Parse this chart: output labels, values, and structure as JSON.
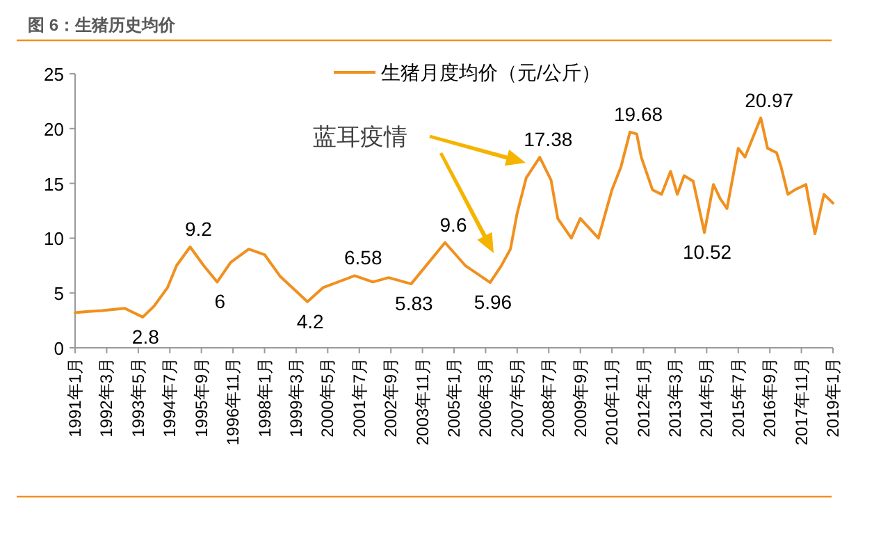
{
  "chart_data": {
    "type": "line",
    "title": "图 6：生猪历史均价",
    "x": [
      "1991-01",
      "1991-06",
      "1992-01",
      "1992-11",
      "1993-07",
      "1993-12",
      "1994-06",
      "1994-10",
      "1995-04",
      "1995-10",
      "1996-04",
      "1996-10",
      "1997-06",
      "1998-01",
      "1998-08",
      "1999-08",
      "2000-03",
      "2001-05",
      "2002-01",
      "2002-08",
      "2003-06",
      "2004-09",
      "2005-06",
      "2006-05",
      "2006-10",
      "2007-02",
      "2007-05",
      "2007-09",
      "2008-03",
      "2008-08",
      "2008-11",
      "2009-05",
      "2009-09",
      "2010-05",
      "2010-11",
      "2011-03",
      "2011-07",
      "2011-10",
      "2011-12",
      "2012-05",
      "2012-09",
      "2013-01",
      "2013-04",
      "2013-07",
      "2013-11",
      "2014-04",
      "2014-08",
      "2014-11",
      "2015-02",
      "2015-07",
      "2015-10",
      "2016-05",
      "2016-08",
      "2016-12",
      "2017-02",
      "2017-05",
      "2017-08",
      "2018-01",
      "2018-05",
      "2018-09",
      "2019-01"
    ],
    "series": [
      {
        "name": "生猪月度均价（元/公斤）",
        "color": "#f0901e",
        "values": [
          3.2,
          3.3,
          3.4,
          3.6,
          2.8,
          3.8,
          5.5,
          7.5,
          9.2,
          7.5,
          6,
          7.8,
          9,
          8.5,
          6.5,
          4.2,
          5.5,
          6.58,
          6.0,
          6.4,
          5.83,
          9.6,
          7.5,
          5.96,
          7.5,
          9,
          12.3,
          15.5,
          17.38,
          15.3,
          11.8,
          10.0,
          11.8,
          10.0,
          14.4,
          16.5,
          19.68,
          19.5,
          17.4,
          14.4,
          14.0,
          16.1,
          14.0,
          15.7,
          15.2,
          10.52,
          14.9,
          13.6,
          12.7,
          18.2,
          17.4,
          20.97,
          18.2,
          17.8,
          16.5,
          14.0,
          14.4,
          14.9,
          10.4,
          14.0,
          13.2
        ],
        "value_labels": [
          null,
          null,
          null,
          null,
          "2.8",
          null,
          null,
          null,
          "9.2",
          null,
          "6",
          null,
          null,
          null,
          null,
          "4.2",
          null,
          "6.58",
          null,
          null,
          "5.83",
          "9.6",
          null,
          "5.96",
          null,
          null,
          null,
          null,
          "17.38",
          null,
          null,
          null,
          null,
          null,
          null,
          null,
          "19.68",
          null,
          null,
          null,
          null,
          null,
          null,
          null,
          null,
          "10.52",
          null,
          null,
          null,
          null,
          null,
          "20.97",
          null,
          null,
          null,
          null,
          null,
          null,
          null,
          null,
          null
        ]
      }
    ],
    "xlim": [
      "1991-01",
      "2019-01"
    ],
    "xticks": [
      {
        "value": "1991-01",
        "label": "1991年1月"
      },
      {
        "value": "1992-03",
        "label": "1992年3月"
      },
      {
        "value": "1993-05",
        "label": "1993年5月"
      },
      {
        "value": "1994-07",
        "label": "1994年7月"
      },
      {
        "value": "1995-09",
        "label": "1995年9月"
      },
      {
        "value": "1996-11",
        "label": "1996年11月"
      },
      {
        "value": "1998-01",
        "label": "1998年1月"
      },
      {
        "value": "1999-03",
        "label": "1999年3月"
      },
      {
        "value": "2000-05",
        "label": "2000年5月"
      },
      {
        "value": "2001-07",
        "label": "2001年7月"
      },
      {
        "value": "2002-09",
        "label": "2002年9月"
      },
      {
        "value": "2003-11",
        "label": "2003年11月"
      },
      {
        "value": "2005-01",
        "label": "2005年1月"
      },
      {
        "value": "2006-03",
        "label": "2006年3月"
      },
      {
        "value": "2007-05",
        "label": "2007年5月"
      },
      {
        "value": "2008-07",
        "label": "2008年7月"
      },
      {
        "value": "2009-09",
        "label": "2009年9月"
      },
      {
        "value": "2010-11",
        "label": "2010年11月"
      },
      {
        "value": "2012-01",
        "label": "2012年1月"
      },
      {
        "value": "2013-03",
        "label": "2013年3月"
      },
      {
        "value": "2014-05",
        "label": "2014年5月"
      },
      {
        "value": "2015-07",
        "label": "2015年7月"
      },
      {
        "value": "2016-09",
        "label": "2016年9月"
      },
      {
        "value": "2017-11",
        "label": "2017年11月"
      },
      {
        "value": "2019-01",
        "label": "2019年1月"
      }
    ],
    "ylim": [
      0,
      25
    ],
    "yticks": [
      0,
      5,
      10,
      15,
      20,
      25
    ],
    "legend": "top",
    "grid": false,
    "marker": "none",
    "line_style": "solid",
    "annotations": [
      "蓝耳疫情"
    ]
  }
}
